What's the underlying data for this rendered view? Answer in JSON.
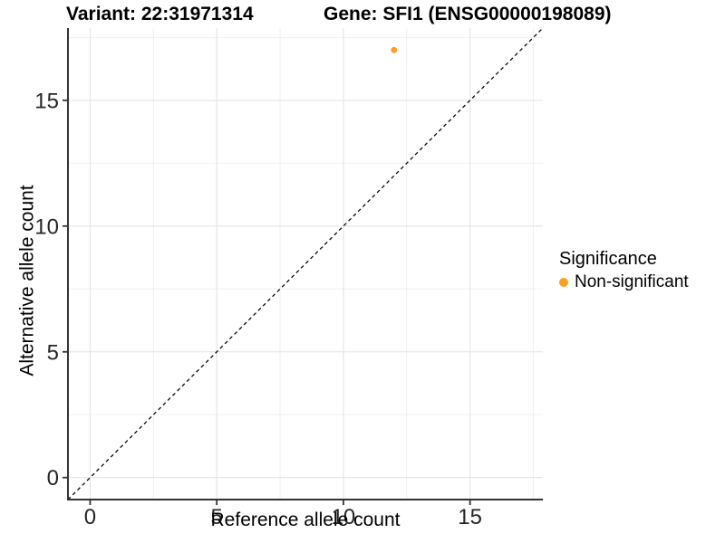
{
  "header": {
    "variant_title": "Variant: 22:31971314",
    "gene_title": "Gene: SFI1 (ENSG00000198089)"
  },
  "axes": {
    "x_label": "Reference allele count",
    "y_label": "Alternative allele count"
  },
  "legend": {
    "title": "Significance",
    "items": [
      {
        "label": "Non-significant",
        "color": "#FAA024"
      }
    ]
  },
  "colors": {
    "point_orange": "#FAA024",
    "axis_line": "#333333",
    "tick_label": "#262626",
    "grid_major": "#E3E3E3",
    "grid_minor": "#EFEFEF",
    "reference_line": "#000000",
    "background": "#FFFFFF"
  },
  "chart_data": {
    "type": "scatter",
    "title": "Variant: 22:31971314   Gene: SFI1 (ENSG00000198089)",
    "xlabel": "Reference allele count",
    "ylabel": "Alternative allele count",
    "xlim": [
      -0.875,
      17.875
    ],
    "ylim": [
      -0.875,
      17.875
    ],
    "x_ticks": [
      0,
      5,
      10,
      15
    ],
    "y_ticks": [
      0,
      5,
      10,
      15
    ],
    "x_minor_ticks": [
      2.5,
      7.5,
      12.5,
      17.5
    ],
    "y_minor_ticks": [
      2.5,
      7.5,
      12.5,
      17.5
    ],
    "grid": true,
    "legend_position": "right",
    "reference_line": {
      "type": "identity",
      "slope": 1,
      "intercept": 0,
      "style": "dashed"
    },
    "series": [
      {
        "name": "Non-significant",
        "color": "#FAA024",
        "points": [
          {
            "x": 12,
            "y": 17
          }
        ]
      }
    ]
  }
}
